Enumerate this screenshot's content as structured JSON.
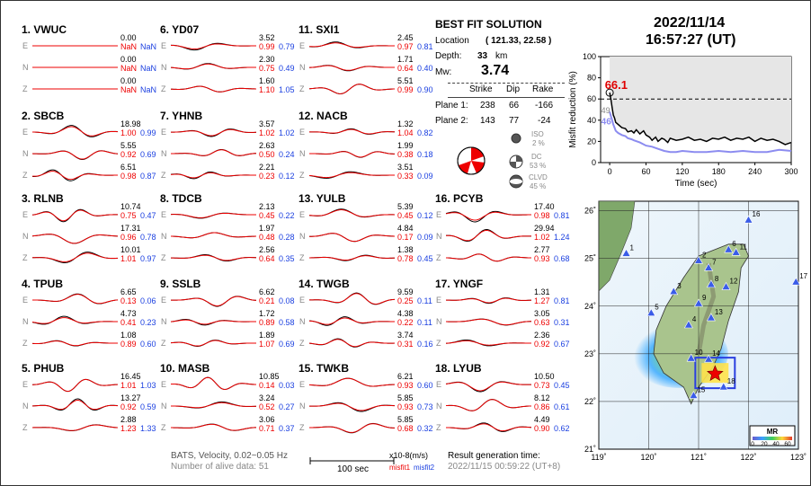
{
  "header": {
    "date": "2022/11/14",
    "time": "16:57:27  (UT)"
  },
  "best_fit": {
    "title": "BEST FIT SOLUTION",
    "location_label": "Location",
    "location_value": "( 121.33,  22.58 )",
    "depth_label": "Depth:",
    "depth_value": "33",
    "depth_unit": "km",
    "mw_label": "Mw:",
    "mw_value": "3.74",
    "col_strike": "Strike",
    "col_dip": "Dip",
    "col_rake": "Rake",
    "plane1_label": "Plane 1:",
    "plane1": [
      "238",
      "66",
      "-166"
    ],
    "plane2_label": "Plane 2:",
    "plane2": [
      "143",
      "77",
      "-24"
    ],
    "iso_label": "ISO",
    "iso_pct": "2  %",
    "dc_label": "DC",
    "dc_pct": "53 %",
    "clvd_label": "CLVD",
    "clvd_pct": "45 %"
  },
  "footer": {
    "method": "BATS, Velocity, 0.02~0.05 Hz",
    "alive": "Number of alive data: 51",
    "scale_label": "100 sec",
    "units": "x10-8(m/s)",
    "misfit1": "misfit1",
    "misfit2": "misfit2",
    "result_label": "Result generation time:",
    "result_time": "2022/11/15 00:59:22 (UT+8)"
  },
  "stations": [
    {
      "title": "1.  VWUC",
      "rows": [
        [
          "E",
          "0.00",
          "NaN",
          "NaN"
        ],
        [
          "N",
          "0.00",
          "NaN",
          "NaN"
        ],
        [
          "Z",
          "0.00",
          "NaN",
          "NaN"
        ]
      ]
    },
    {
      "title": "2.  SBCB",
      "rows": [
        [
          "E",
          "18.98",
          "1.00",
          "0.99"
        ],
        [
          "N",
          "5.55",
          "0.92",
          "0.69"
        ],
        [
          "Z",
          "6.51",
          "0.98",
          "0.87"
        ]
      ]
    },
    {
      "title": "3.  RLNB",
      "rows": [
        [
          "E",
          "10.74",
          "0.75",
          "0.47"
        ],
        [
          "N",
          "17.31",
          "0.96",
          "0.78"
        ],
        [
          "Z",
          "10.01",
          "1.01",
          "0.97"
        ]
      ]
    },
    {
      "title": "4.  TPUB",
      "rows": [
        [
          "E",
          "6.65",
          "0.13",
          "0.06"
        ],
        [
          "N",
          "4.73",
          "0.41",
          "0.23"
        ],
        [
          "Z",
          "1.08",
          "0.89",
          "0.60"
        ]
      ]
    },
    {
      "title": "5.  PHUB",
      "rows": [
        [
          "E",
          "16.45",
          "1.01",
          "1.03"
        ],
        [
          "N",
          "13.27",
          "0.92",
          "0.59"
        ],
        [
          "Z",
          "2.88",
          "1.23",
          "1.33"
        ]
      ]
    },
    {
      "title": "6.  YD07",
      "rows": [
        [
          "E",
          "3.52",
          "0.99",
          "0.79"
        ],
        [
          "N",
          "2.30",
          "0.75",
          "0.49"
        ],
        [
          "Z",
          "1.60",
          "1.10",
          "1.05"
        ]
      ]
    },
    {
      "title": "7.  YHNB",
      "rows": [
        [
          "E",
          "3.57",
          "1.02",
          "1.02"
        ],
        [
          "N",
          "2.63",
          "0.50",
          "0.24"
        ],
        [
          "Z",
          "2.21",
          "0.23",
          "0.12"
        ]
      ]
    },
    {
      "title": "8.  TDCB",
      "rows": [
        [
          "E",
          "2.13",
          "0.45",
          "0.22"
        ],
        [
          "N",
          "1.97",
          "0.48",
          "0.28"
        ],
        [
          "Z",
          "2.56",
          "0.64",
          "0.35"
        ]
      ]
    },
    {
      "title": "9.  SSLB",
      "rows": [
        [
          "E",
          "6.62",
          "0.21",
          "0.08"
        ],
        [
          "N",
          "1.72",
          "0.89",
          "0.58"
        ],
        [
          "Z",
          "1.89",
          "1.07",
          "0.69"
        ]
      ]
    },
    {
      "title": "10.  MASB",
      "rows": [
        [
          "E",
          "10.85",
          "0.14",
          "0.03"
        ],
        [
          "N",
          "3.24",
          "0.52",
          "0.27"
        ],
        [
          "Z",
          "3.06",
          "0.71",
          "0.37"
        ]
      ]
    },
    {
      "title": "11.  SXI1",
      "rows": [
        [
          "E",
          "2.45",
          "0.97",
          "0.81"
        ],
        [
          "N",
          "1.71",
          "0.64",
          "0.40"
        ],
        [
          "Z",
          "5.51",
          "0.99",
          "0.90"
        ]
      ]
    },
    {
      "title": "12.  NACB",
      "rows": [
        [
          "E",
          "1.32",
          "1.04",
          "0.82"
        ],
        [
          "N",
          "1.99",
          "0.38",
          "0.18"
        ],
        [
          "Z",
          "3.51",
          "0.33",
          "0.09"
        ]
      ]
    },
    {
      "title": "13.  YULB",
      "rows": [
        [
          "E",
          "5.39",
          "0.45",
          "0.12"
        ],
        [
          "N",
          "4.84",
          "0.17",
          "0.09"
        ],
        [
          "Z",
          "1.38",
          "0.78",
          "0.45"
        ]
      ]
    },
    {
      "title": "14.  TWGB",
      "rows": [
        [
          "E",
          "9.59",
          "0.25",
          "0.11"
        ],
        [
          "N",
          "4.38",
          "0.22",
          "0.11"
        ],
        [
          "Z",
          "3.74",
          "0.31",
          "0.16"
        ]
      ]
    },
    {
      "title": "15.  TWKB",
      "rows": [
        [
          "E",
          "6.21",
          "0.93",
          "0.60"
        ],
        [
          "N",
          "5.85",
          "0.93",
          "0.73"
        ],
        [
          "Z",
          "5.85",
          "0.68",
          "0.32"
        ]
      ]
    },
    {
      "title": "16.  PCYB",
      "rows": [
        [
          "E",
          "17.40",
          "0.98",
          "0.81"
        ],
        [
          "N",
          "29.94",
          "1.02",
          "1.24"
        ],
        [
          "Z",
          "2.77",
          "0.93",
          "0.68"
        ]
      ]
    },
    {
      "title": "17.  YNGF",
      "rows": [
        [
          "E",
          "1.31",
          "1.27",
          "0.81"
        ],
        [
          "N",
          "3.05",
          "0.63",
          "0.31"
        ],
        [
          "Z",
          "2.36",
          "0.92",
          "0.67"
        ]
      ]
    },
    {
      "title": "18.  LYUB",
      "rows": [
        [
          "E",
          "10.50",
          "0.73",
          "0.45"
        ],
        [
          "N",
          "8.12",
          "0.86",
          "0.61"
        ],
        [
          "Z",
          "4.49",
          "0.90",
          "0.62"
        ]
      ]
    }
  ],
  "chart_data": [
    {
      "type": "line",
      "ylabel": "Misfit reduction (%)",
      "xlabel": "Time (sec)",
      "xlim": [
        -15,
        300
      ],
      "ylim": [
        0,
        100
      ],
      "xticks": [
        "0",
        "60",
        "120",
        "180",
        "240",
        "300"
      ],
      "yticks": [
        "0",
        "20",
        "40",
        "60",
        "80",
        "100"
      ],
      "threshold": 60,
      "peak_label": "66.1",
      "label_49": "49",
      "label_46": "46",
      "colors": {
        "black": "#000000",
        "blue": "#8c8cf0",
        "peak": "#e00000",
        "fill": "#e6e6e6"
      },
      "series": [
        {
          "values_x": [
            0,
            2,
            4,
            6,
            8,
            10,
            14,
            20,
            26,
            30,
            36,
            40,
            44,
            50,
            56,
            60,
            66,
            70,
            76,
            80,
            86,
            90,
            96,
            100,
            110,
            120,
            130,
            140,
            150,
            160,
            170,
            180,
            190,
            200,
            210,
            220,
            230,
            240,
            250,
            260,
            270,
            280,
            290,
            300
          ],
          "values_y": [
            66,
            60,
            52,
            45,
            42,
            38,
            36,
            33,
            32,
            29,
            30,
            28,
            31,
            27,
            30,
            26,
            24,
            21,
            24,
            20,
            23,
            22,
            19,
            23,
            21,
            22,
            24,
            21,
            22,
            20,
            23,
            22,
            24,
            21,
            23,
            22,
            24,
            20,
            23,
            21,
            22,
            20,
            17,
            19
          ]
        },
        {
          "values_x": [
            0,
            2,
            4,
            6,
            8,
            10,
            14,
            20,
            26,
            30,
            36,
            40,
            50,
            60,
            70,
            80,
            90,
            100,
            110,
            120,
            140,
            160,
            180,
            200,
            220,
            240,
            260,
            280,
            300
          ],
          "values_y": [
            48,
            44,
            40,
            36,
            33,
            30,
            28,
            26,
            25,
            23,
            22,
            21,
            19,
            16,
            15,
            13,
            11,
            10,
            10,
            11,
            10,
            10,
            11,
            10,
            11,
            10,
            10,
            12,
            11
          ]
        }
      ]
    },
    {
      "type": "heatmap",
      "xticks": [
        "119",
        "120",
        "121",
        "122",
        "123"
      ],
      "yticks": [
        "21",
        "22",
        "23",
        "24",
        "25",
        "26"
      ],
      "legend_title": "MR",
      "legend_ticks": [
        "0",
        "20",
        "40",
        "60"
      ],
      "epicenter": [
        121.33,
        22.58
      ],
      "stations": [
        {
          "id": "1",
          "lon": 119.55,
          "lat": 25.1
        },
        {
          "id": "2",
          "lon": 121.0,
          "lat": 24.95
        },
        {
          "id": "3",
          "lon": 120.5,
          "lat": 24.3
        },
        {
          "id": "4",
          "lon": 120.8,
          "lat": 23.6
        },
        {
          "id": "5",
          "lon": 120.05,
          "lat": 23.85
        },
        {
          "id": "6",
          "lon": 121.6,
          "lat": 25.18
        },
        {
          "id": "7",
          "lon": 121.2,
          "lat": 24.8
        },
        {
          "id": "8",
          "lon": 121.25,
          "lat": 24.45
        },
        {
          "id": "9",
          "lon": 121.0,
          "lat": 24.05
        },
        {
          "id": "10",
          "lon": 120.85,
          "lat": 22.9
        },
        {
          "id": "11",
          "lon": 121.75,
          "lat": 25.12
        },
        {
          "id": "12",
          "lon": 121.55,
          "lat": 24.4
        },
        {
          "id": "13",
          "lon": 121.25,
          "lat": 23.75
        },
        {
          "id": "14",
          "lon": 121.2,
          "lat": 22.88
        },
        {
          "id": "15",
          "lon": 120.9,
          "lat": 22.12
        },
        {
          "id": "16",
          "lon": 122.0,
          "lat": 25.8
        },
        {
          "id": "17",
          "lon": 122.95,
          "lat": 24.5
        },
        {
          "id": "18",
          "lon": 121.5,
          "lat": 22.3
        }
      ]
    }
  ]
}
